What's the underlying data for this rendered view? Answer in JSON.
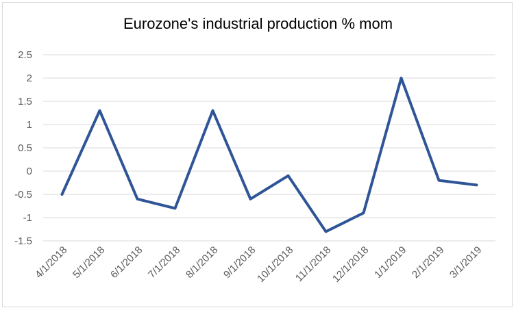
{
  "chart_data": {
    "type": "line",
    "title": "Eurozone's industrial production % mom",
    "xlabel": "",
    "ylabel": "",
    "categories": [
      "4/1/2018",
      "5/1/2018",
      "6/1/2018",
      "7/1/2018",
      "8/1/2018",
      "9/1/2018",
      "10/1/2018",
      "11/1/2018",
      "12/1/2018",
      "1/1/2019",
      "2/1/2019",
      "3/1/2019"
    ],
    "series": [
      {
        "values": [
          -0.5,
          1.3,
          -0.6,
          -0.8,
          1.3,
          -0.6,
          -0.1,
          -1.3,
          -0.9,
          2.0,
          -0.2,
          -0.3
        ]
      }
    ],
    "y_ticks": [
      "2.5",
      "2",
      "1.5",
      "1",
      "0.5",
      "0",
      "-0.5",
      "-1",
      "-1.5"
    ],
    "ylim": [
      -1.5,
      2.5
    ],
    "grid": true,
    "legend": "none",
    "colors": {
      "line": "#2f5597",
      "grid": "#d9d9d9",
      "tick_text": "#595959"
    }
  }
}
